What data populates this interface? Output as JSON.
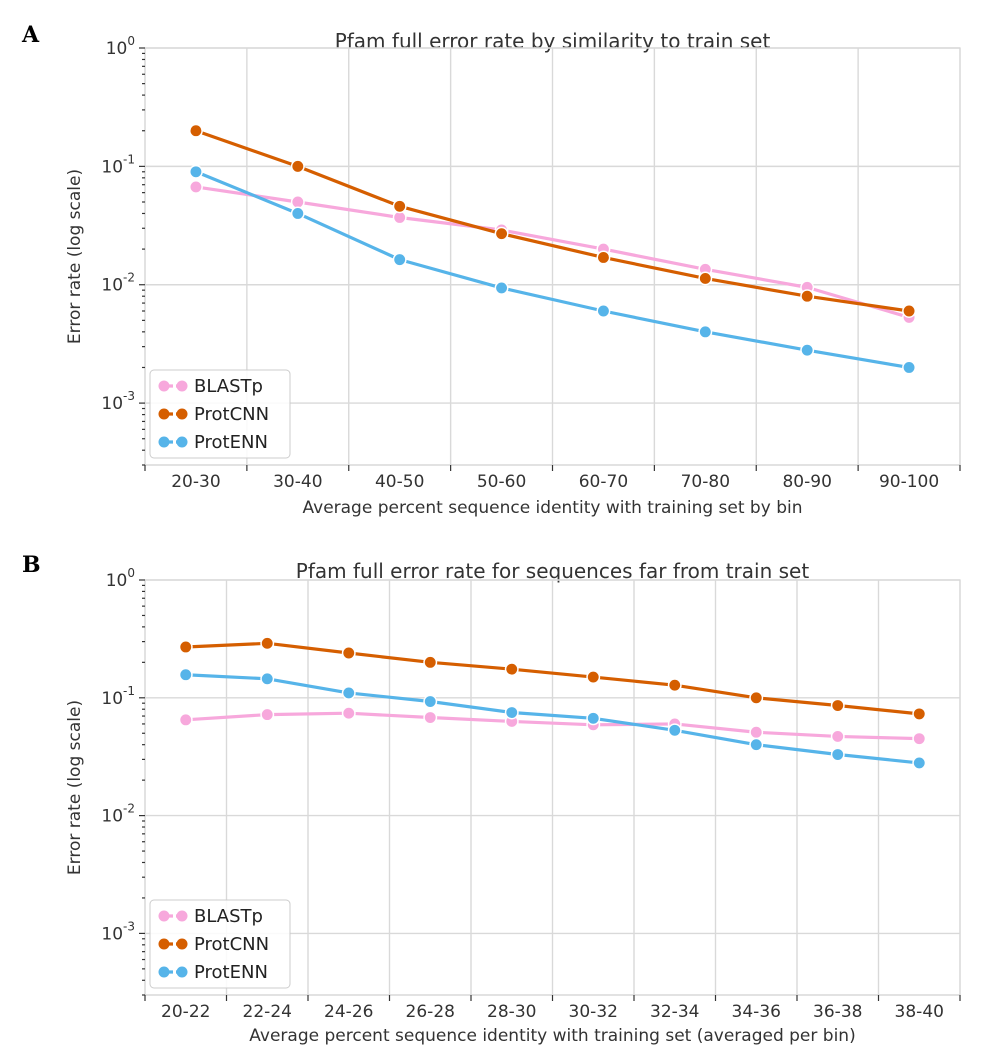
{
  "colors": {
    "BLASTp": "#f7a8dc",
    "ProtCNN": "#d55e00",
    "ProtENN": "#56b4e9"
  },
  "chart_data": [
    {
      "panel": "A",
      "type": "line",
      "title": "Pfam full error rate by similarity to train set",
      "xlabel": "Average percent sequence identity with training set by bin",
      "ylabel": "Error rate (log scale)",
      "yscale": "log",
      "ylim": [
        0.0003,
        1.0
      ],
      "yticks": [
        {
          "base": "10",
          "exp": "0"
        },
        {
          "base": "10",
          "exp": "-1"
        },
        {
          "base": "10",
          "exp": "-2"
        },
        {
          "base": "10",
          "exp": "-3"
        }
      ],
      "grid": true,
      "legend_position": "lower-left",
      "categories": [
        "20-30",
        "30-40",
        "40-50",
        "50-60",
        "60-70",
        "70-80",
        "80-90",
        "90-100"
      ],
      "series": [
        {
          "name": "BLASTp",
          "values": [
            0.067,
            0.05,
            0.037,
            0.029,
            0.02,
            0.0135,
            0.0095,
            0.0053
          ]
        },
        {
          "name": "ProtCNN",
          "values": [
            0.2,
            0.1,
            0.046,
            0.027,
            0.017,
            0.0113,
            0.008,
            0.006
          ]
        },
        {
          "name": "ProtENN",
          "values": [
            0.09,
            0.04,
            0.0163,
            0.0094,
            0.006,
            0.004,
            0.0028,
            0.002
          ]
        }
      ]
    },
    {
      "panel": "B",
      "type": "line",
      "title": "Pfam full error rate for sequences far from train set",
      "xlabel": "Average percent sequence identity with training set (averaged per bin)",
      "ylabel": "Error rate (log scale)",
      "yscale": "log",
      "ylim": [
        0.0003,
        1.0
      ],
      "yticks": [
        {
          "base": "10",
          "exp": "0"
        },
        {
          "base": "10",
          "exp": "-1"
        },
        {
          "base": "10",
          "exp": "-2"
        },
        {
          "base": "10",
          "exp": "-3"
        }
      ],
      "grid": true,
      "legend_position": "lower-left",
      "categories": [
        "20-22",
        "22-24",
        "24-26",
        "26-28",
        "28-30",
        "30-32",
        "32-34",
        "34-36",
        "36-38",
        "38-40"
      ],
      "series": [
        {
          "name": "BLASTp",
          "values": [
            0.065,
            0.072,
            0.074,
            0.068,
            0.063,
            0.059,
            0.06,
            0.051,
            0.047,
            0.045
          ]
        },
        {
          "name": "ProtCNN",
          "values": [
            0.27,
            0.29,
            0.24,
            0.2,
            0.175,
            0.15,
            0.128,
            0.1,
            0.086,
            0.073
          ]
        },
        {
          "name": "ProtENN",
          "values": [
            0.157,
            0.145,
            0.11,
            0.093,
            0.075,
            0.067,
            0.053,
            0.04,
            0.033,
            0.028
          ]
        }
      ]
    }
  ]
}
